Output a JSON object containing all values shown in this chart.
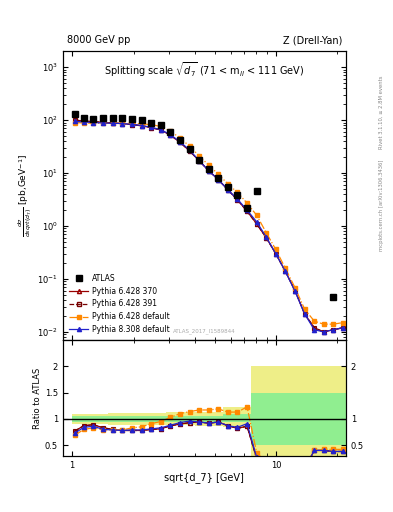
{
  "top_label_left": "8000 GeV pp",
  "top_label_right": "Z (Drell-Yan)",
  "title": "Splitting scale $\\sqrt{d_7}$ (71 < m$_{ll}$ < 111 GeV)",
  "ylabel_main": "$\\frac{d\\sigma}{dsqrt(d_7)}$ [pb,GeV$^{-1}$]",
  "ylabel_ratio": "Ratio to ATLAS",
  "xlabel": "sqrt{d_7} [GeV]",
  "watermark": "ATLAS_2017_I1589844",
  "right_label_top": "Rivet 3.1.10, ≥ 2.8M events",
  "right_label_bottom": "mcplots.cern.ch [arXiv:1306.3436]",
  "atlas_x": [
    1.03,
    1.14,
    1.27,
    1.42,
    1.58,
    1.76,
    1.97,
    2.19,
    2.44,
    2.72,
    3.03,
    3.38,
    3.77,
    4.2,
    4.68,
    5.21,
    5.81,
    6.47,
    7.21,
    8.03,
    19.1
  ],
  "atlas_y": [
    130,
    110,
    105,
    110,
    110,
    110,
    105,
    100,
    90,
    80,
    60,
    42,
    28,
    18,
    12,
    8,
    5.5,
    3.8,
    2.2,
    4.5,
    0.045
  ],
  "py6_370_x": [
    1.03,
    1.14,
    1.27,
    1.42,
    1.58,
    1.76,
    1.97,
    2.19,
    2.44,
    2.72,
    3.03,
    3.38,
    3.77,
    4.2,
    4.68,
    5.21,
    5.81,
    6.47,
    7.21,
    8.03,
    8.95,
    9.97,
    11.1,
    12.4,
    13.8,
    15.4,
    17.1,
    19.1,
    21.3
  ],
  "py6_370_y": [
    100,
    96,
    93,
    91,
    88,
    86,
    82,
    78,
    72,
    65,
    52,
    38,
    26,
    17,
    11,
    7.5,
    4.8,
    3.1,
    1.9,
    1.1,
    0.6,
    0.3,
    0.14,
    0.06,
    0.022,
    0.012,
    0.01,
    0.011,
    0.012
  ],
  "py6_391_x": [
    1.03,
    1.14,
    1.27,
    1.42,
    1.58,
    1.76,
    1.97,
    2.19,
    2.44,
    2.72,
    3.03,
    3.38,
    3.77,
    4.2,
    4.68,
    5.21,
    5.81,
    6.47,
    7.21,
    8.03,
    8.95,
    9.97,
    11.1,
    12.4,
    13.8,
    15.4,
    17.1,
    19.1,
    21.3
  ],
  "py6_391_y": [
    100,
    96,
    93,
    91,
    88,
    86,
    82,
    78,
    72,
    65,
    52,
    38,
    26,
    17,
    11,
    7.5,
    4.8,
    3.1,
    1.9,
    1.1,
    0.6,
    0.3,
    0.14,
    0.06,
    0.022,
    0.012,
    0.01,
    0.011,
    0.012
  ],
  "py6_def_x": [
    1.03,
    1.14,
    1.27,
    1.42,
    1.58,
    1.76,
    1.97,
    2.19,
    2.44,
    2.72,
    3.03,
    3.38,
    3.77,
    4.2,
    4.68,
    5.21,
    5.81,
    6.47,
    7.21,
    8.03,
    8.95,
    9.97,
    11.1,
    12.4,
    13.8,
    15.4,
    17.1,
    19.1,
    21.3
  ],
  "py6_def_y": [
    90,
    88,
    87,
    87,
    87,
    87,
    87,
    85,
    82,
    76,
    62,
    46,
    32,
    21,
    14,
    9.5,
    6.2,
    4.3,
    2.7,
    1.6,
    0.75,
    0.36,
    0.16,
    0.068,
    0.027,
    0.016,
    0.014,
    0.014,
    0.015
  ],
  "py8_def_x": [
    1.03,
    1.14,
    1.27,
    1.42,
    1.58,
    1.76,
    1.97,
    2.19,
    2.44,
    2.72,
    3.03,
    3.38,
    3.77,
    4.2,
    4.68,
    5.21,
    5.81,
    6.47,
    7.21,
    8.03,
    8.95,
    9.97,
    11.1,
    12.4,
    13.8,
    15.4,
    17.1,
    19.1,
    21.3
  ],
  "py8_def_y": [
    95,
    92,
    90,
    88,
    87,
    86,
    83,
    79,
    73,
    66,
    53,
    39,
    27,
    17,
    11,
    7.5,
    4.8,
    3.2,
    2.0,
    1.2,
    0.62,
    0.3,
    0.14,
    0.058,
    0.022,
    0.011,
    0.01,
    0.011,
    0.012
  ],
  "ratio_x": [
    1.03,
    1.14,
    1.27,
    1.42,
    1.58,
    1.76,
    1.97,
    2.19,
    2.44,
    2.72,
    3.03,
    3.38,
    3.77,
    4.2,
    4.68,
    5.21,
    5.81,
    6.47,
    7.21,
    8.03,
    8.95,
    9.97,
    11.1,
    12.4,
    13.8,
    15.4,
    17.1,
    19.1,
    21.3
  ],
  "ratio_py6_370": [
    0.77,
    0.87,
    0.89,
    0.83,
    0.8,
    0.78,
    0.78,
    0.78,
    0.8,
    0.81,
    0.87,
    0.9,
    0.93,
    0.94,
    0.92,
    0.94,
    0.87,
    0.82,
    0.86,
    0.25,
    0.13,
    0.08,
    0.055,
    0.05,
    0.048,
    0.4,
    0.4,
    0.38,
    0.38
  ],
  "ratio_py6_391": [
    0.77,
    0.87,
    0.89,
    0.83,
    0.8,
    0.78,
    0.78,
    0.78,
    0.8,
    0.81,
    0.87,
    0.9,
    0.93,
    0.94,
    0.92,
    0.94,
    0.87,
    0.82,
    0.86,
    0.25,
    0.13,
    0.08,
    0.055,
    0.05,
    0.048,
    0.4,
    0.4,
    0.38,
    0.38
  ],
  "ratio_py6_def": [
    0.69,
    0.8,
    0.83,
    0.79,
    0.79,
    0.79,
    0.83,
    0.85,
    0.91,
    0.95,
    1.03,
    1.1,
    1.14,
    1.17,
    1.17,
    1.19,
    1.13,
    1.13,
    1.23,
    0.36,
    0.17,
    0.096,
    0.064,
    0.058,
    0.055,
    0.4,
    0.42,
    0.42,
    0.42
  ],
  "ratio_py8_def": [
    0.73,
    0.84,
    0.86,
    0.8,
    0.79,
    0.78,
    0.79,
    0.79,
    0.81,
    0.83,
    0.88,
    0.93,
    0.96,
    0.94,
    0.92,
    0.94,
    0.87,
    0.84,
    0.91,
    0.27,
    0.13,
    0.08,
    0.056,
    0.05,
    0.048,
    0.4,
    0.4,
    0.38,
    0.38
  ],
  "band_edges": [
    1.0,
    1.5,
    2.1,
    2.9,
    4.0,
    5.5,
    7.5,
    10.0,
    14.0,
    22.0
  ],
  "green_lo": [
    0.95,
    0.95,
    0.95,
    0.95,
    0.95,
    0.95,
    0.5,
    0.5,
    0.5
  ],
  "green_hi": [
    1.05,
    1.05,
    1.05,
    1.05,
    1.05,
    1.1,
    1.5,
    1.5,
    1.5
  ],
  "yellow_lo": [
    0.9,
    0.88,
    0.88,
    0.88,
    0.87,
    0.85,
    0.25,
    0.25,
    0.25
  ],
  "yellow_hi": [
    1.1,
    1.12,
    1.12,
    1.13,
    1.13,
    1.23,
    2.0,
    2.0,
    2.0
  ],
  "color_atlas": "#000000",
  "color_py6_370": "#990000",
  "color_py6_391": "#770000",
  "color_py6_def": "#FF8800",
  "color_py8_def": "#2222CC",
  "color_green": "#90EE90",
  "color_yellow": "#EEEE88",
  "xlim": [
    0.9,
    22.0
  ],
  "ylim_main": [
    0.007,
    2000
  ],
  "ylim_ratio": [
    0.3,
    2.5
  ]
}
